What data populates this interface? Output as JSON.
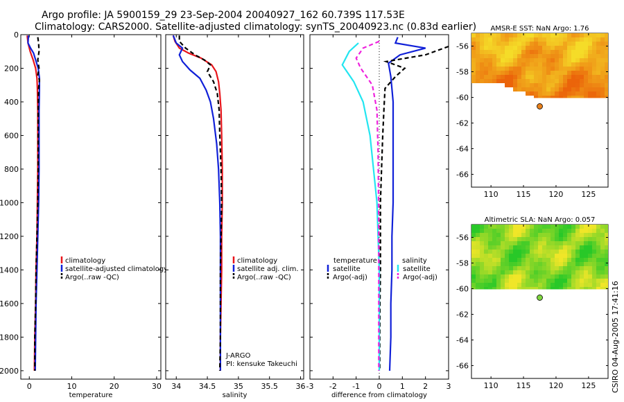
{
  "title": {
    "line1": "Argo profile: JA 5900159_29 23-Sep-2004 20040927_162 60.739S 117.53E",
    "line2": "Climatology: CARS2000. Satellite-adjusted climatology: synTS_20040923.nc (0.83d earlier)"
  },
  "side_label": "CSIRO 04-Aug-2005 17:41:16",
  "colors": {
    "red": "#e8151b",
    "blue": "#1020d8",
    "black": "#000000",
    "cyan": "#22e5f0",
    "magenta": "#ee22dd"
  },
  "chart_data": [
    {
      "type": "line",
      "id": "temperature",
      "xlabel": "temperature",
      "xlim": [
        -2,
        31
      ],
      "xticks": [
        0,
        10,
        20,
        30
      ],
      "ylim": [
        0,
        2050
      ],
      "yticks": [
        0,
        200,
        400,
        600,
        800,
        1000,
        1200,
        1400,
        1600,
        1800,
        2000
      ],
      "legend": [
        "climatology",
        "satellite-adjusted climatology",
        "Argo(..raw -QC)"
      ],
      "series": [
        {
          "name": "climatology",
          "color": "red",
          "dash": false,
          "points": [
            [
              -0.5,
              5
            ],
            [
              -0.3,
              50
            ],
            [
              0.2,
              100
            ],
            [
              0.9,
              150
            ],
            [
              1.5,
              200
            ],
            [
              1.8,
              260
            ],
            [
              1.9,
              320
            ],
            [
              2.0,
              450
            ],
            [
              2.0,
              600
            ],
            [
              2.0,
              800
            ],
            [
              1.9,
              1000
            ],
            [
              1.8,
              1200
            ],
            [
              1.6,
              1400
            ],
            [
              1.5,
              1600
            ],
            [
              1.3,
              1800
            ],
            [
              1.2,
              2000
            ]
          ]
        },
        {
          "name": "satellite-adjusted climatology",
          "color": "blue",
          "dash": false,
          "points": [
            [
              -0.2,
              5
            ],
            [
              -0.3,
              50
            ],
            [
              0.3,
              80
            ],
            [
              1.0,
              110
            ],
            [
              1.5,
              150
            ],
            [
              2.1,
              200
            ],
            [
              2.4,
              260
            ],
            [
              2.4,
              320
            ],
            [
              2.3,
              450
            ],
            [
              2.3,
              600
            ],
            [
              2.3,
              800
            ],
            [
              2.2,
              1000
            ],
            [
              2.0,
              1200
            ],
            [
              1.8,
              1400
            ],
            [
              1.6,
              1600
            ],
            [
              1.5,
              1800
            ],
            [
              1.4,
              2000
            ]
          ]
        },
        {
          "name": "Argo(..raw -QC)",
          "color": "black",
          "dash": true,
          "points": [
            [
              2.0,
              15
            ],
            [
              2.2,
              50
            ],
            [
              2.3,
              100
            ],
            [
              2.0,
              150
            ],
            [
              2.3,
              200
            ],
            [
              2.0,
              240
            ],
            [
              2.4,
              270
            ],
            [
              2.2,
              320
            ],
            [
              2.1,
              450
            ],
            [
              2.1,
              600
            ],
            [
              2.1,
              800
            ],
            [
              2.0,
              1000
            ],
            [
              1.8,
              1200
            ],
            [
              1.6,
              1400
            ],
            [
              1.5,
              1600
            ],
            [
              1.3,
              1800
            ],
            [
              1.3,
              2000
            ]
          ]
        }
      ]
    },
    {
      "type": "line",
      "id": "salinity",
      "xlabel": "salinity",
      "xlim": [
        33.83,
        36.05
      ],
      "xticks": [
        34,
        34.5,
        35,
        35.5,
        36
      ],
      "xticklabels": [
        "34",
        "34.5",
        "35",
        "35.5",
        "36"
      ],
      "ylim": [
        0,
        2050
      ],
      "legend": [
        "climatology",
        "satellite adj. clim.",
        "Argo(..raw -QC)"
      ],
      "annotation": [
        "J-ARGO",
        "PI: kensuke Takeuchi"
      ],
      "series": [
        {
          "name": "climatology",
          "color": "red",
          "dash": false,
          "points": [
            [
              33.95,
              5
            ],
            [
              33.98,
              40
            ],
            [
              34.05,
              80
            ],
            [
              34.2,
              110
            ],
            [
              34.4,
              140
            ],
            [
              34.57,
              180
            ],
            [
              34.64,
              220
            ],
            [
              34.68,
              280
            ],
            [
              34.7,
              350
            ],
            [
              34.72,
              450
            ],
            [
              34.73,
              600
            ],
            [
              34.74,
              800
            ],
            [
              34.74,
              1000
            ],
            [
              34.73,
              1200
            ],
            [
              34.73,
              1400
            ],
            [
              34.72,
              1600
            ],
            [
              34.71,
              1800
            ],
            [
              34.71,
              2000
            ]
          ]
        },
        {
          "name": "satellite adj. clim.",
          "color": "blue",
          "dash": false,
          "points": [
            [
              33.95,
              5
            ],
            [
              34.0,
              50
            ],
            [
              34.1,
              80
            ],
            [
              34.05,
              120
            ],
            [
              34.1,
              160
            ],
            [
              34.22,
              210
            ],
            [
              34.38,
              260
            ],
            [
              34.48,
              330
            ],
            [
              34.55,
              400
            ],
            [
              34.6,
              500
            ],
            [
              34.65,
              650
            ],
            [
              34.68,
              800
            ],
            [
              34.7,
              1000
            ],
            [
              34.71,
              1200
            ],
            [
              34.71,
              1400
            ],
            [
              34.71,
              1600
            ],
            [
              34.71,
              1800
            ],
            [
              34.71,
              2000
            ]
          ]
        },
        {
          "name": "Argo(..raw -QC)",
          "color": "black",
          "dash": true,
          "points": [
            [
              34.05,
              5
            ],
            [
              34.05,
              40
            ],
            [
              34.15,
              80
            ],
            [
              34.3,
              120
            ],
            [
              34.45,
              150
            ],
            [
              34.55,
              180
            ],
            [
              34.5,
              220
            ],
            [
              34.6,
              280
            ],
            [
              34.66,
              350
            ],
            [
              34.69,
              450
            ],
            [
              34.7,
              600
            ],
            [
              34.72,
              800
            ],
            [
              34.73,
              1000
            ],
            [
              34.72,
              1200
            ],
            [
              34.71,
              1400
            ],
            [
              34.71,
              1600
            ],
            [
              34.71,
              1800
            ],
            [
              34.7,
              2000
            ]
          ]
        }
      ]
    },
    {
      "type": "line",
      "id": "difference",
      "xlabel": "difference from climatology",
      "xlim": [
        -3,
        3
      ],
      "xticks": [
        -3,
        -2,
        -1,
        0,
        1,
        2,
        3
      ],
      "ylim": [
        0,
        2050
      ],
      "legend_left_title": "temperature",
      "legend_left": [
        "satellite",
        "Argo(-adj)"
      ],
      "legend_right_title": "salinity",
      "legend_right": [
        "satellite",
        "Argo(-adj)"
      ],
      "series": [
        {
          "name": "temperature satellite",
          "color": "blue",
          "dash": false,
          "points": [
            [
              0.8,
              15
            ],
            [
              0.7,
              50
            ],
            [
              2.0,
              80
            ],
            [
              0.9,
              120
            ],
            [
              0.4,
              170
            ],
            [
              0.5,
              250
            ],
            [
              0.6,
              400
            ],
            [
              0.6,
              600
            ],
            [
              0.6,
              800
            ],
            [
              0.6,
              1000
            ],
            [
              0.55,
              1200
            ],
            [
              0.55,
              1400
            ],
            [
              0.5,
              1600
            ],
            [
              0.5,
              1800
            ],
            [
              0.45,
              2000
            ]
          ]
        },
        {
          "name": "temperature Argo(-adj)",
          "color": "black",
          "dash": true,
          "points": [
            [
              3.0,
              70
            ],
            [
              2.0,
              120
            ],
            [
              0.3,
              160
            ],
            [
              1.1,
              200
            ],
            [
              0.7,
              250
            ],
            [
              0.25,
              320
            ],
            [
              0.2,
              450
            ],
            [
              0.15,
              600
            ],
            [
              0.1,
              800
            ],
            [
              0.05,
              1000
            ],
            [
              0.05,
              1200
            ],
            [
              0.05,
              1400
            ],
            [
              0.03,
              1600
            ],
            [
              0.02,
              1800
            ],
            [
              0.02,
              2000
            ]
          ]
        },
        {
          "name": "salinity satellite",
          "color": "cyan",
          "dash": false,
          "points": [
            [
              -0.9,
              50
            ],
            [
              -1.3,
              100
            ],
            [
              -1.6,
              180
            ],
            [
              -1.1,
              280
            ],
            [
              -0.7,
              400
            ],
            [
              -0.4,
              600
            ],
            [
              -0.25,
              800
            ],
            [
              -0.1,
              1000
            ],
            [
              -0.05,
              1200
            ],
            [
              0.0,
              1400
            ],
            [
              0.0,
              1600
            ],
            [
              0.0,
              1800
            ],
            [
              0.0,
              2000
            ]
          ]
        },
        {
          "name": "salinity Argo(-adj)",
          "color": "magenta",
          "dash": true,
          "points": [
            [
              0.0,
              40
            ],
            [
              -0.7,
              80
            ],
            [
              -1.0,
              140
            ],
            [
              -0.8,
              200
            ],
            [
              -0.3,
              300
            ],
            [
              -0.1,
              450
            ],
            [
              -0.05,
              700
            ],
            [
              -0.03,
              1000
            ],
            [
              -0.02,
              1300
            ],
            [
              -0.02,
              1600
            ],
            [
              -0.02,
              2000
            ]
          ]
        }
      ]
    },
    {
      "type": "heatmap",
      "id": "sst-map",
      "title": "AMSR-E SST: NaN Argo: 1.76",
      "xlim": [
        107,
        128
      ],
      "xticks": [
        110,
        115,
        120,
        125
      ],
      "ylim": [
        -67,
        -55
      ],
      "yticks": [
        -56,
        -58,
        -60,
        -62,
        -64,
        -66
      ],
      "argo_point": [
        117.5,
        -60.7
      ],
      "argo_point_color": "#e8801c",
      "palette": "orange-yellow"
    },
    {
      "type": "heatmap",
      "id": "sla-map",
      "title": "Altimetric SLA: NaN Argo: 0.057",
      "xlim": [
        107,
        128
      ],
      "xticks": [
        110,
        115,
        120,
        125
      ],
      "ylim": [
        -67,
        -55
      ],
      "yticks": [
        -56,
        -58,
        -60,
        -62,
        -64,
        -66
      ],
      "argo_point": [
        117.5,
        -60.7
      ],
      "argo_point_color": "#7fd640",
      "palette": "green-yellow"
    }
  ]
}
